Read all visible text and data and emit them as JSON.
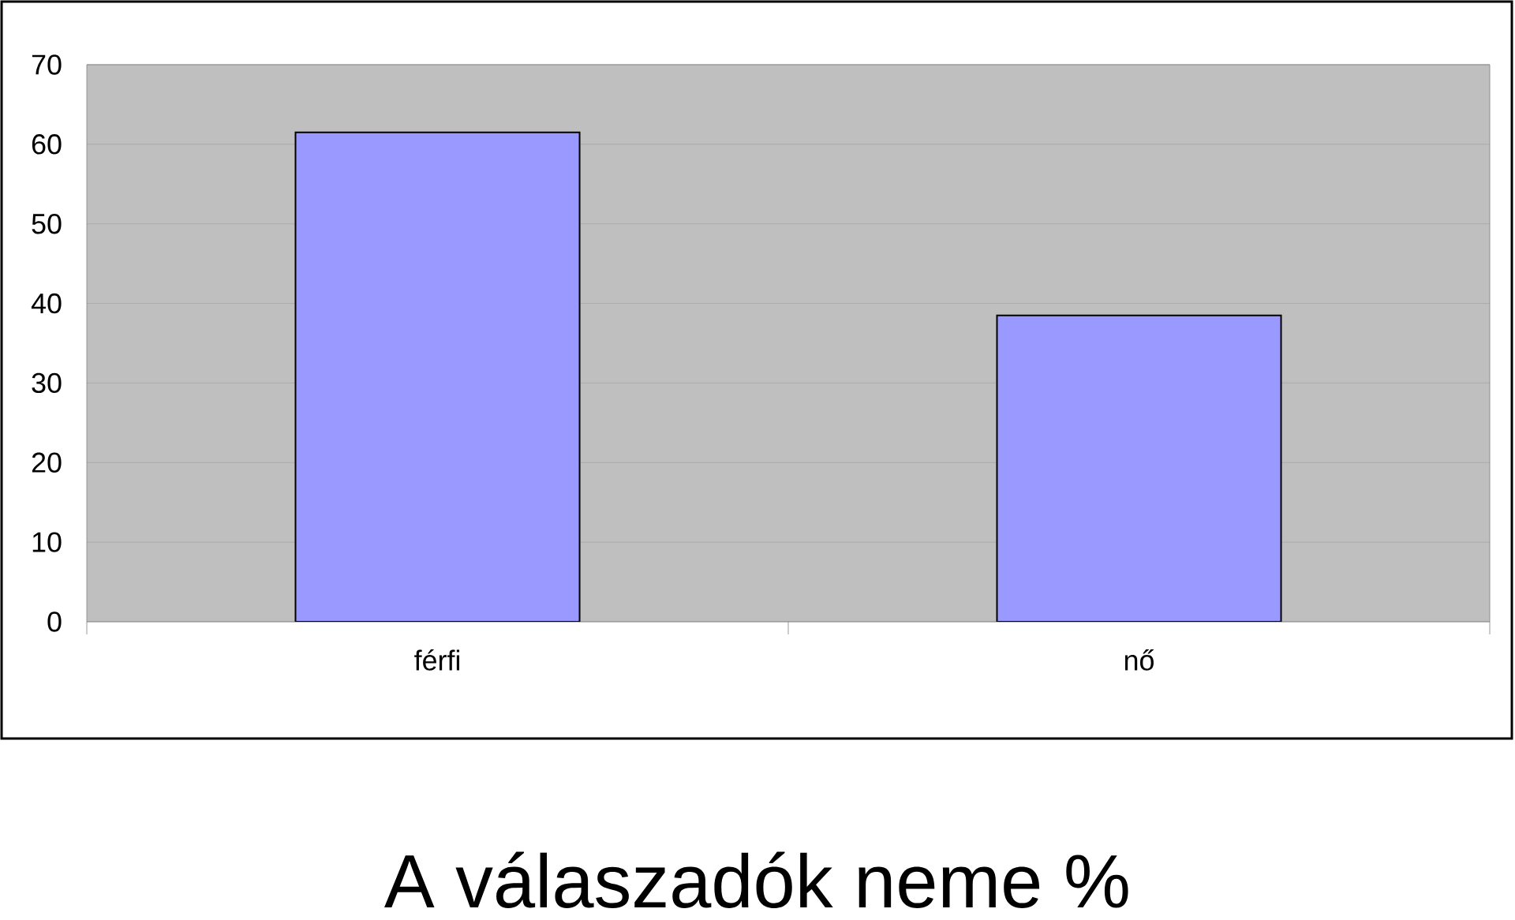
{
  "chart_data": {
    "type": "bar",
    "title": "A válaszadók neme %",
    "categories": [
      "férfi",
      "nő"
    ],
    "values": [
      61.5,
      38.5
    ],
    "color": "#9999ff",
    "ylim": [
      0,
      70
    ],
    "yticks": [
      0,
      10,
      20,
      30,
      40,
      50,
      60,
      70
    ],
    "grid": "y"
  }
}
